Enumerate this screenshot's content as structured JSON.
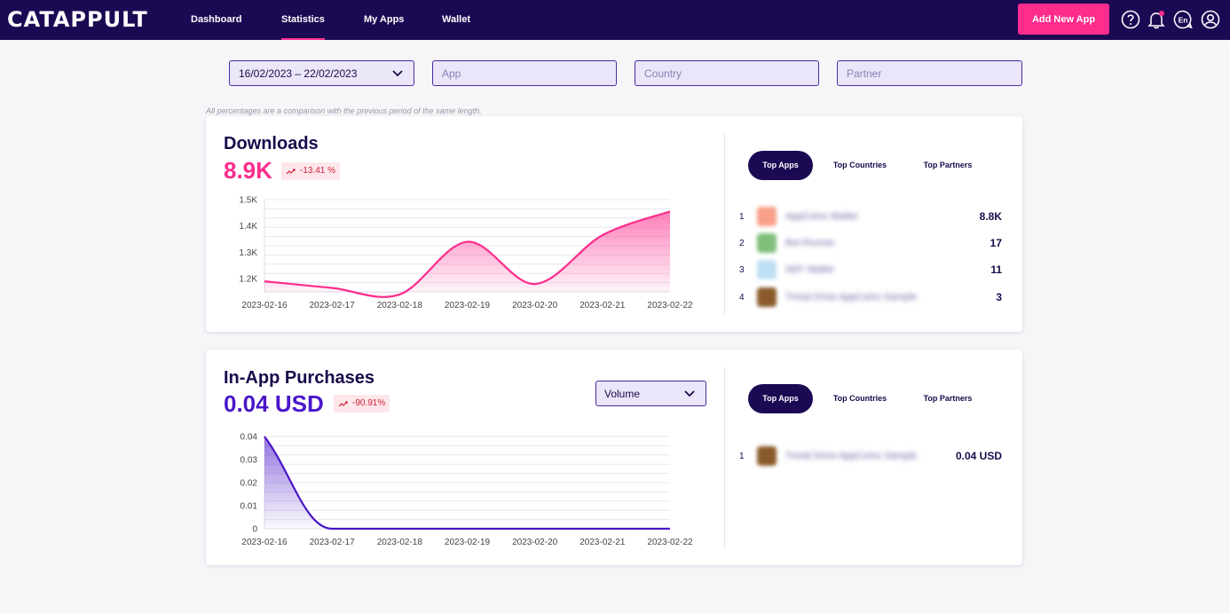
{
  "app": {
    "logo": "CATAPPULT"
  },
  "nav": {
    "items": [
      "Dashboard",
      "Statistics",
      "My Apps",
      "Wallet"
    ],
    "active": "Statistics",
    "add_app": "Add New App",
    "lang": "En"
  },
  "filters": {
    "date_range": "16/02/2023 – 22/02/2023",
    "app_placeholder": "App",
    "country_placeholder": "Country",
    "partner_placeholder": "Partner"
  },
  "note": "All percentages are a comparison with the previous period of the same length.",
  "colors": {
    "brand_dark": "#1b0a53",
    "accent_pink": "#fe2c8c",
    "purple": "#4a17c9"
  },
  "downloads": {
    "title": "Downloads",
    "value": "8.9K",
    "delta": "-13.41 %",
    "tabs": [
      "Top Apps",
      "Top Countries",
      "Top Partners"
    ],
    "top_apps": [
      {
        "rank": "1",
        "name": "AppCoins Wallet",
        "value": "8.8K",
        "color": "#f9a08a"
      },
      {
        "rank": "2",
        "name": "Bot Runner",
        "value": "17",
        "color": "#7fbf7a"
      },
      {
        "rank": "3",
        "name": "AEF Wallet",
        "value": "11",
        "color": "#bfe0f4"
      },
      {
        "rank": "4",
        "name": "Trivial Drive AppCoins Sample",
        "value": "3",
        "color": "#8a5a2b"
      }
    ]
  },
  "purchases": {
    "title": "In-App Purchases",
    "value": "0.04 USD",
    "delta": "-90.91%",
    "select": "Volume",
    "tabs": [
      "Top Apps",
      "Top Countries",
      "Top Partners"
    ],
    "top_apps": [
      {
        "rank": "1",
        "name": "Trivial Drive AppCoins Sample",
        "value": "0.04 USD",
        "color": "#8a5a2b"
      }
    ]
  },
  "chart_data": [
    {
      "type": "area",
      "x": [
        "2023-02-16",
        "2023-02-17",
        "2023-02-18",
        "2023-02-19",
        "2023-02-20",
        "2023-02-21",
        "2023-02-22"
      ],
      "values": [
        1190,
        1165,
        1140,
        1340,
        1180,
        1365,
        1455
      ],
      "yticks": [
        "1.2K",
        "1.3K",
        "1.4K",
        "1.5K"
      ],
      "ylim": [
        1150,
        1500
      ],
      "grid": true,
      "color": "#fe2c8c"
    },
    {
      "type": "area",
      "x": [
        "2023-02-16",
        "2023-02-17",
        "2023-02-18",
        "2023-02-19",
        "2023-02-20",
        "2023-02-21",
        "2023-02-22"
      ],
      "values": [
        0.04,
        0,
        0,
        0,
        0,
        0,
        0
      ],
      "yticks": [
        "0",
        "0.01",
        "0.02",
        "0.03",
        "0.04"
      ],
      "ylim": [
        0,
        0.04
      ],
      "grid": true,
      "color": "#4a17c9"
    }
  ]
}
